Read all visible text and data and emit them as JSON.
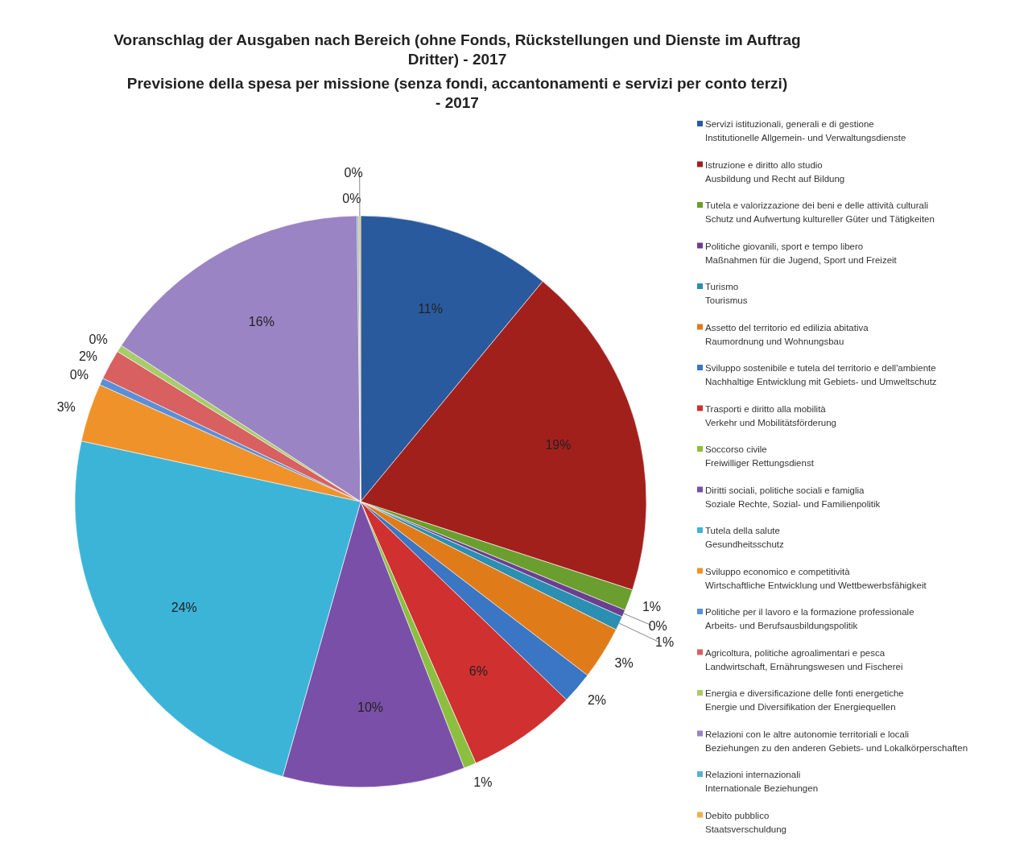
{
  "chart_data": {
    "type": "pie",
    "title": "Voranschlag der Ausgaben nach Bereich (ohne Fonds, Rückstellungen und Dienste im Auftrag Dritter) - 2017",
    "subtitle": "Previsione della spesa per missione (senza fondi, accantonamenti e servizi per conto terzi) - 2017",
    "categories": [
      "Servizi istituzionali,  generali e di gestione\nInstitutionelle Allgemein- und Verwaltungsdienste",
      "Istruzione e diritto allo studio\nAusbildung und Recht auf Bildung",
      "Tutela e valorizzazione dei beni e delle attività culturali\nSchutz und Aufwertung kultureller Güter und Tätigkeiten",
      "Politiche giovanili, sport e tempo libero\nMaßnahmen für die Jugend, Sport und Freizeit",
      "Turismo\nTourismus",
      "Assetto del territorio ed edilizia abitativa\nRaumordnung und Wohnungsbau",
      "Sviluppo sostenibile e tutela del territorio e dell'ambiente\nNachhaltige Entwicklung mit Gebiets- und Umweltschutz",
      "Trasporti e diritto alla mobilità\nVerkehr und Mobilitätsförderung",
      "Soccorso civile\nFreiwilliger Rettungsdienst",
      "Diritti sociali, politiche sociali e famiglia\nSoziale Rechte, Sozial- und Familienpolitik",
      "Tutela della salute\nGesundheitsschutz",
      "Sviluppo economico e competitività\nWirtschaftliche Entwicklung und Wettbewerbsfähigkeit",
      "Politiche per il lavoro e la formazione professionale\nArbeits- und Berufsausbildungspolitik",
      "Agricoltura, politiche agroalimentari e pesca\nLandwirtschaft, Ernährungswesen und Fischerei",
      "Energia e diversificazione delle fonti energetiche\nEnergie und Diversifikation der Energiequellen",
      "Relazioni con le altre autonomie territoriali e locali\nBeziehungen zu den anderen Gebiets- und Lokalkörperschaften",
      "Relazioni internazionali\nInternationale Beziehungen",
      "Debito pubblico\nStaatsverschuldung"
    ],
    "values": [
      11.0,
      19.0,
      1.2,
      0.4,
      0.8,
      3.0,
      1.8,
      6.2,
      0.7,
      10.3,
      24.0,
      3.3,
      0.4,
      1.7,
      0.4,
      15.6,
      0.1,
      0.1
    ],
    "value_labels": [
      "11%",
      "19%",
      "1%",
      "0%",
      "1%",
      "3%",
      "2%",
      "6%",
      "1%",
      "10%",
      "24%",
      "3%",
      "0%",
      "2%",
      "0%",
      "16%",
      "0%",
      "0%"
    ],
    "colors": [
      "#2a5a9e",
      "#a2201c",
      "#6a9e2e",
      "#6b3f8f",
      "#2a8fb0",
      "#e07b1a",
      "#3a76c4",
      "#d03030",
      "#8cbf3f",
      "#7a4fa8",
      "#3cb4d8",
      "#f0922a",
      "#5a8fd8",
      "#d86060",
      "#a8cc6a",
      "#9a84c4",
      "#5ab0d0",
      "#f0b050"
    ],
    "legend": "right"
  }
}
